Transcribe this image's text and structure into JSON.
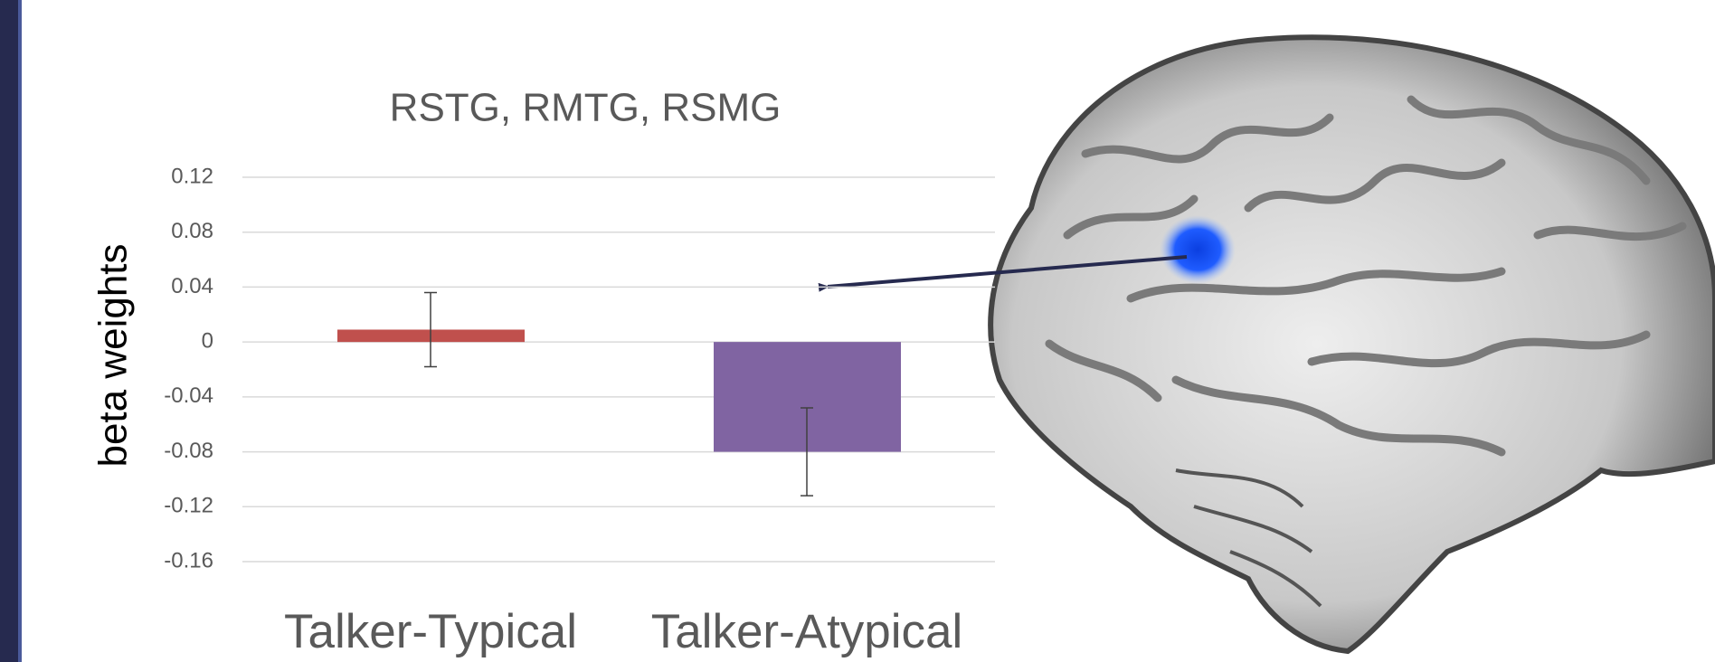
{
  "chart_data": {
    "type": "bar",
    "title": "RSTG, RMTG, RSMG",
    "y_label": "beta weights",
    "categories": [
      "Talker-Typical",
      "Talker-Atypical"
    ],
    "values": [
      0.009,
      -0.08
    ],
    "errors": [
      0.027,
      0.032
    ],
    "colors": [
      "#c0504d",
      "#8064a2"
    ],
    "ylim": [
      -0.16,
      0.12
    ],
    "yticks": [
      0.12,
      0.08,
      0.04,
      0,
      -0.04,
      -0.08,
      -0.12,
      -0.16
    ],
    "grid": true
  }
}
